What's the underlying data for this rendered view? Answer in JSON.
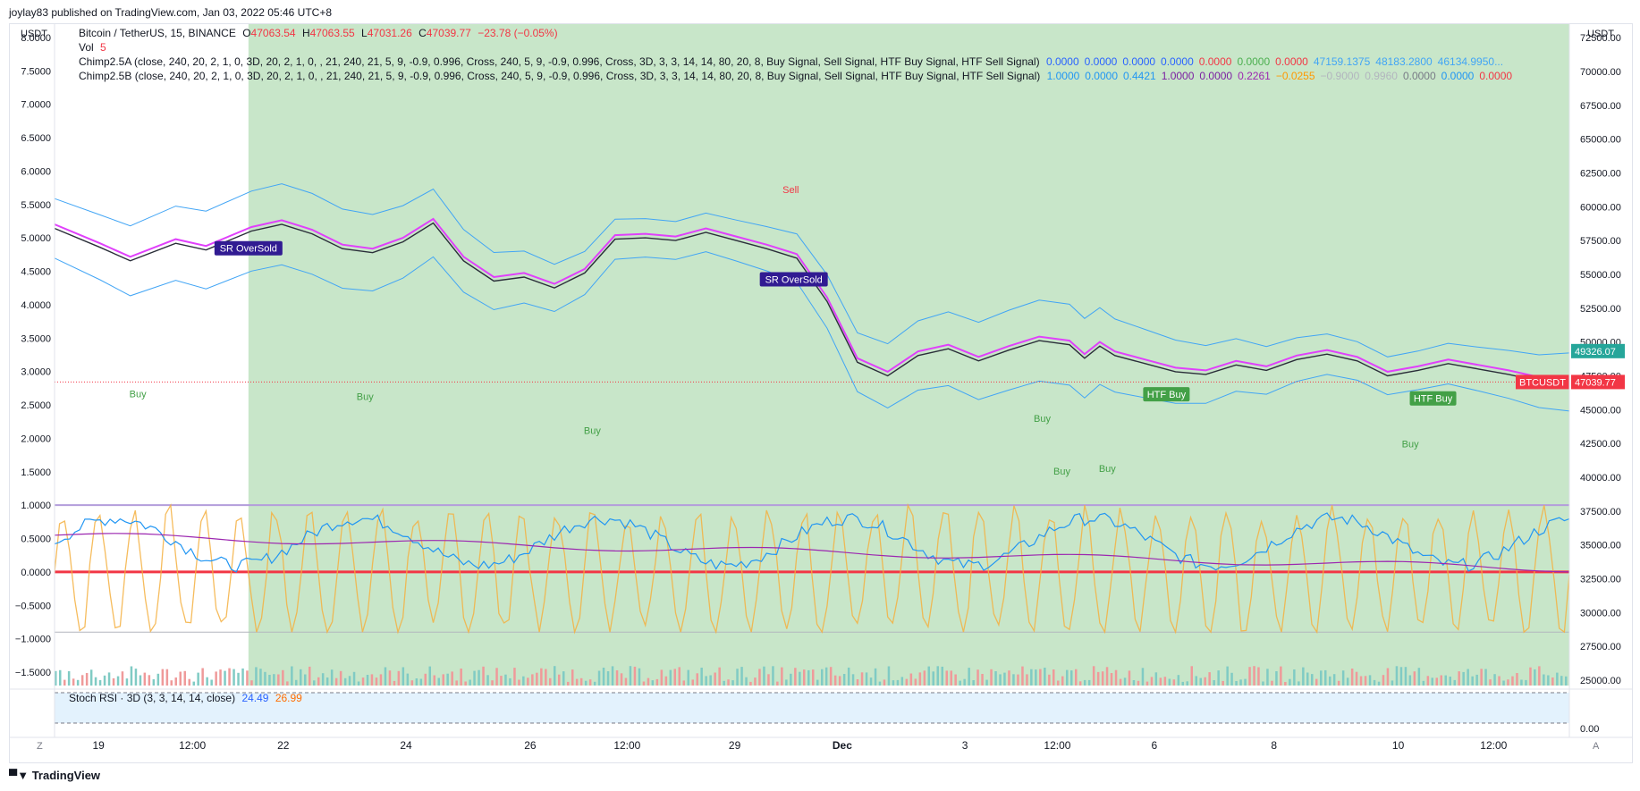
{
  "header": {
    "published": "joylay83 published on TradingView.com, Jan 03, 2022 05:46 UTC+8"
  },
  "symbol": {
    "name": "Bitcoin / TetherUS, 15, BINANCE",
    "o_label": "O",
    "o": "47063.54",
    "h_label": "H",
    "h": "47063.55",
    "l_label": "L",
    "l": "47031.26",
    "c_label": "C",
    "c": "47039.77",
    "chg": "−23.78 (−0.05%)"
  },
  "vol": {
    "label": "Vol",
    "value": "5"
  },
  "chimpA": {
    "label": "Chimp2.5A (close, 240, 20, 2, 1, 0, 3D, 20, 2, 1, 0, , 21, 240, 21, 5, 9, -0.9, 0.996, Cross, 240, 5, 9, -0.9, 0.996, Cross, 3D, 3, 3, 14, 14, 80, 20, 8, Buy Signal, Sell Signal, HTF Buy Signal, HTF Sell Signal)",
    "values": [
      {
        "v": "0.0000",
        "c": "#2962ff"
      },
      {
        "v": "0.0000",
        "c": "#2962ff"
      },
      {
        "v": "0.0000",
        "c": "#2962ff"
      },
      {
        "v": "0.0000",
        "c": "#2962ff"
      },
      {
        "v": "0.0000",
        "c": "#f23645"
      },
      {
        "v": "0.0000",
        "c": "#4caf50"
      },
      {
        "v": "0.0000",
        "c": "#f23645"
      },
      {
        "v": "47159.1375",
        "c": "#42a5f5"
      },
      {
        "v": "48183.2800",
        "c": "#42a5f5"
      },
      {
        "v": "46134.9950...",
        "c": "#42a5f5"
      }
    ]
  },
  "chimpB": {
    "label": "Chimp2.5B (close, 240, 20, 2, 1, 0, 3D, 20, 2, 1, 0, , 21, 240, 21, 5, 9, -0.9, 0.996, Cross, 240, 5, 9, -0.9, 0.996, Cross, 3D, 3, 3, 14, 14, 80, 20, 8, Buy Signal, Sell Signal, HTF Buy Signal, HTF Sell Signal)",
    "values": [
      {
        "v": "1.0000",
        "c": "#2196f3"
      },
      {
        "v": "0.0000",
        "c": "#2196f3"
      },
      {
        "v": "0.4421",
        "c": "#2196f3"
      },
      {
        "v": "1.0000",
        "c": "#7b1fa2"
      },
      {
        "v": "0.0000",
        "c": "#7b1fa2"
      },
      {
        "v": "0.2261",
        "c": "#9c27b0"
      },
      {
        "v": "−0.0255",
        "c": "#ff9800"
      },
      {
        "v": "−0.9000",
        "c": "#b2b5be"
      },
      {
        "v": "0.9960",
        "c": "#b2b5be"
      },
      {
        "v": "0.0000",
        "c": "#787b86"
      },
      {
        "v": "0.0000",
        "c": "#2196f3"
      },
      {
        "v": "0.0000",
        "c": "#f23645"
      }
    ]
  },
  "stoch": {
    "label": "Stoch RSI · 3D (3, 3, 14, 14, close)",
    "k": "24.49",
    "d": "26.99",
    "zero": "0.00"
  },
  "chart_data": {
    "type": "line",
    "title": "Bitcoin / TetherUS, 15, BINANCE",
    "right_axis": {
      "unit": "USDT",
      "ticks": [
        "72500.00",
        "70000.00",
        "67500.00",
        "65000.00",
        "62500.00",
        "60000.00",
        "57500.00",
        "55000.00",
        "52500.00",
        "50000.00",
        "47500.00",
        "45000.00",
        "42500.00",
        "40000.00",
        "37500.00",
        "35000.00",
        "32500.00",
        "30000.00",
        "27500.00",
        "25000.00"
      ],
      "range": [
        24600,
        73500
      ]
    },
    "left_axis": {
      "unit": "USDT",
      "ticks": [
        "8.0000",
        "7.5000",
        "7.0000",
        "6.5000",
        "6.0000",
        "5.5000",
        "5.0000",
        "4.5000",
        "4.0000",
        "3.5000",
        "3.0000",
        "2.5000",
        "2.0000",
        "1.5000",
        "1.0000",
        "0.5000",
        "0.0000",
        "−0.5000",
        "−1.0000",
        "−1.5000"
      ],
      "range": [
        -1.7,
        8.2
      ]
    },
    "x_ticks": [
      "19",
      "12:00",
      "22",
      "24",
      "26",
      "12:00",
      "29",
      "Dec",
      "3",
      "12:00",
      "6",
      "8",
      "10",
      "12:00"
    ],
    "price_series": {
      "name": "BTCUSDT",
      "x": [
        0,
        3,
        5,
        8,
        10,
        13,
        15,
        17,
        19,
        21,
        23,
        25,
        27,
        29,
        31,
        33,
        35,
        37,
        39,
        41,
        43,
        45,
        47,
        49,
        51,
        53,
        55,
        57,
        59,
        61,
        63,
        65,
        67,
        68,
        69,
        70,
        72,
        74,
        76,
        78,
        80,
        82,
        84,
        86,
        88,
        90,
        92,
        94,
        96,
        98,
        100
      ],
      "y": [
        58400,
        57000,
        56000,
        57300,
        56800,
        58200,
        58700,
        58000,
        56900,
        56600,
        57400,
        58800,
        56000,
        54500,
        54800,
        54000,
        55100,
        57600,
        57700,
        57500,
        58100,
        57500,
        56900,
        56200,
        53000,
        48500,
        47500,
        49000,
        49500,
        48600,
        49400,
        50100,
        49800,
        48800,
        49700,
        49000,
        48400,
        47800,
        47600,
        48300,
        47900,
        48700,
        49100,
        48600,
        47500,
        47900,
        48400,
        48000,
        47600,
        47100,
        47040
      ]
    },
    "labels": {
      "last_price": "47039.77",
      "symbol_tag": "BTCUSDT",
      "upper_band_value": "49326.07"
    },
    "signals": {
      "buy": "Buy",
      "sell": "Sell",
      "htf_buy": "HTF Buy",
      "sr_oversold": "SR OverSold"
    }
  },
  "bottom": {
    "left_btn": "Z",
    "right_btn": "A",
    "logo": "TradingView"
  },
  "colors": {
    "bg_green": "#c8e6c9",
    "upper": "#42a5f5",
    "mid": "#e040fb",
    "gray": "#b39ddb",
    "up": "#26a69a",
    "down": "#ef5350"
  }
}
